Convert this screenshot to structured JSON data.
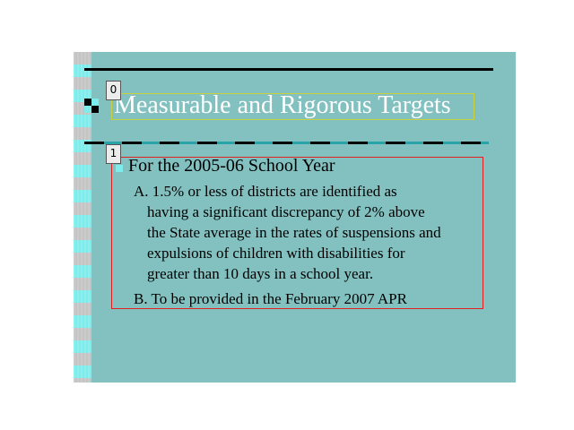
{
  "slide": {
    "title": "Measurable and Rigorous Targets",
    "subheading": "For the 2005-06 School Year",
    "items": [
      {
        "lines": [
          "A.  1.5% or less of districts are identified as",
          "having a significant discrepancy of 2% above",
          "the State average in the rates of suspensions and",
          "expulsions of children with disabilities for",
          "greater than 10 days in a school year."
        ]
      },
      {
        "lines": [
          "B.  To be provided in the February 2007 APR"
        ]
      }
    ]
  },
  "annotations": {
    "tag0": "0",
    "tag1": "1"
  },
  "colors": {
    "slide_background": "#83c1c0",
    "title_text": "#ffffff",
    "accent_cyan": "#7fecec",
    "title_box_border": "#c8d03a",
    "body_box_border": "#e02020"
  }
}
